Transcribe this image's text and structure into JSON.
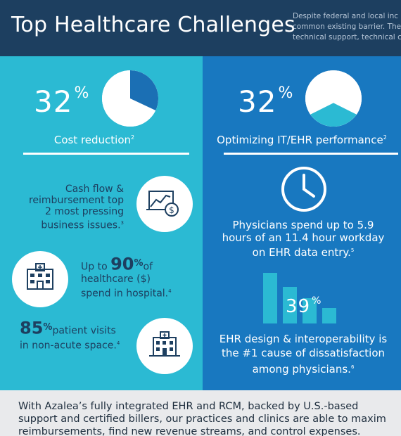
{
  "header": {
    "title": "Top Healthcare Challenges",
    "intro_lines": [
      "Despite federal and local inc",
      "common existing barrier. The",
      "technical support, technical c"
    ]
  },
  "left": {
    "cost": {
      "value": "32",
      "unit": "%",
      "label": "Cost reduction",
      "ref": "2",
      "pie_fraction": 0.32
    },
    "cashflow": {
      "lines": [
        "Cash flow &",
        "reimbursement top",
        "2 most pressing",
        "business issues."
      ],
      "ref": "3"
    },
    "hospital": {
      "prefix": "Up to ",
      "value": "90",
      "unit": "%",
      "suffix": "of",
      "lines": [
        "healthcare ($)",
        "spend in hospital."
      ],
      "ref": "4"
    },
    "visits": {
      "value": "85",
      "unit": "%",
      "suffix": "patient visits",
      "line2": "in non-acute space.",
      "ref": "4"
    }
  },
  "right": {
    "it": {
      "value": "32",
      "unit": "%",
      "label": "Optimizing IT/EHR performance",
      "ref": "2",
      "fill_fraction": 0.32
    },
    "physicians": {
      "lines": [
        "Physicians spend up to 5.9",
        "hours of an 11.4 hour workday",
        "on EHR data entry."
      ],
      "ref": "5"
    },
    "ehr": {
      "value": "39",
      "unit": "%",
      "bars": [
        1.0,
        0.72,
        0.5,
        0.3
      ],
      "lines": [
        "EHR design & interoperability is",
        "the #1 cause of dissatisfaction",
        "among physicians."
      ],
      "ref": "6"
    }
  },
  "footer": {
    "lines": [
      "With Azalea’s fully integrated EHR and RCM, backed by U.S.-based",
      "support and certified billers, our practices and clinics are able to maxim",
      "reimbursements, find new revenue streams, and control expenses."
    ]
  },
  "colors": {
    "navy": "#1d3f60",
    "teal": "#2bbad3",
    "blue": "#1878c0",
    "pie_blue": "#1b6fb4"
  }
}
